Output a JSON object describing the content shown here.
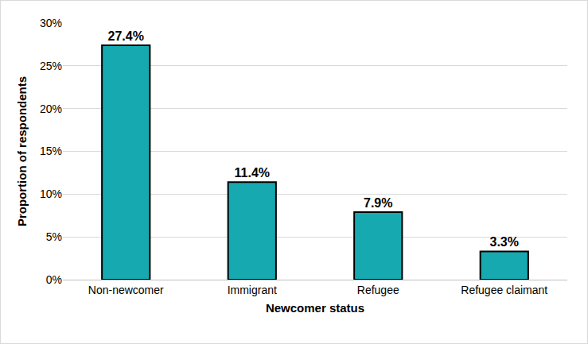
{
  "chart_data": {
    "type": "bar",
    "x_label": "Newcomer status",
    "y_label": "Proportion of respondents",
    "categories": [
      "Non-newcomer",
      "Immigrant",
      "Refugee",
      "Refugee claimant"
    ],
    "values": [
      27.4,
      11.4,
      7.9,
      3.3
    ],
    "value_labels": [
      "27.4%",
      "11.4%",
      "7.9%",
      "3.3%"
    ],
    "data_labels": true,
    "color": "#17a9b0",
    "ylim": [
      0,
      30
    ],
    "yticks": [
      {
        "value": 0,
        "label": "0%"
      },
      {
        "value": 5,
        "label": "5%"
      },
      {
        "value": 10,
        "label": "10%"
      },
      {
        "value": 15,
        "label": "15%"
      },
      {
        "value": 20,
        "label": "20%"
      },
      {
        "value": 25,
        "label": "25%"
      },
      {
        "value": 30,
        "label": "30%"
      }
    ],
    "grid": true
  }
}
